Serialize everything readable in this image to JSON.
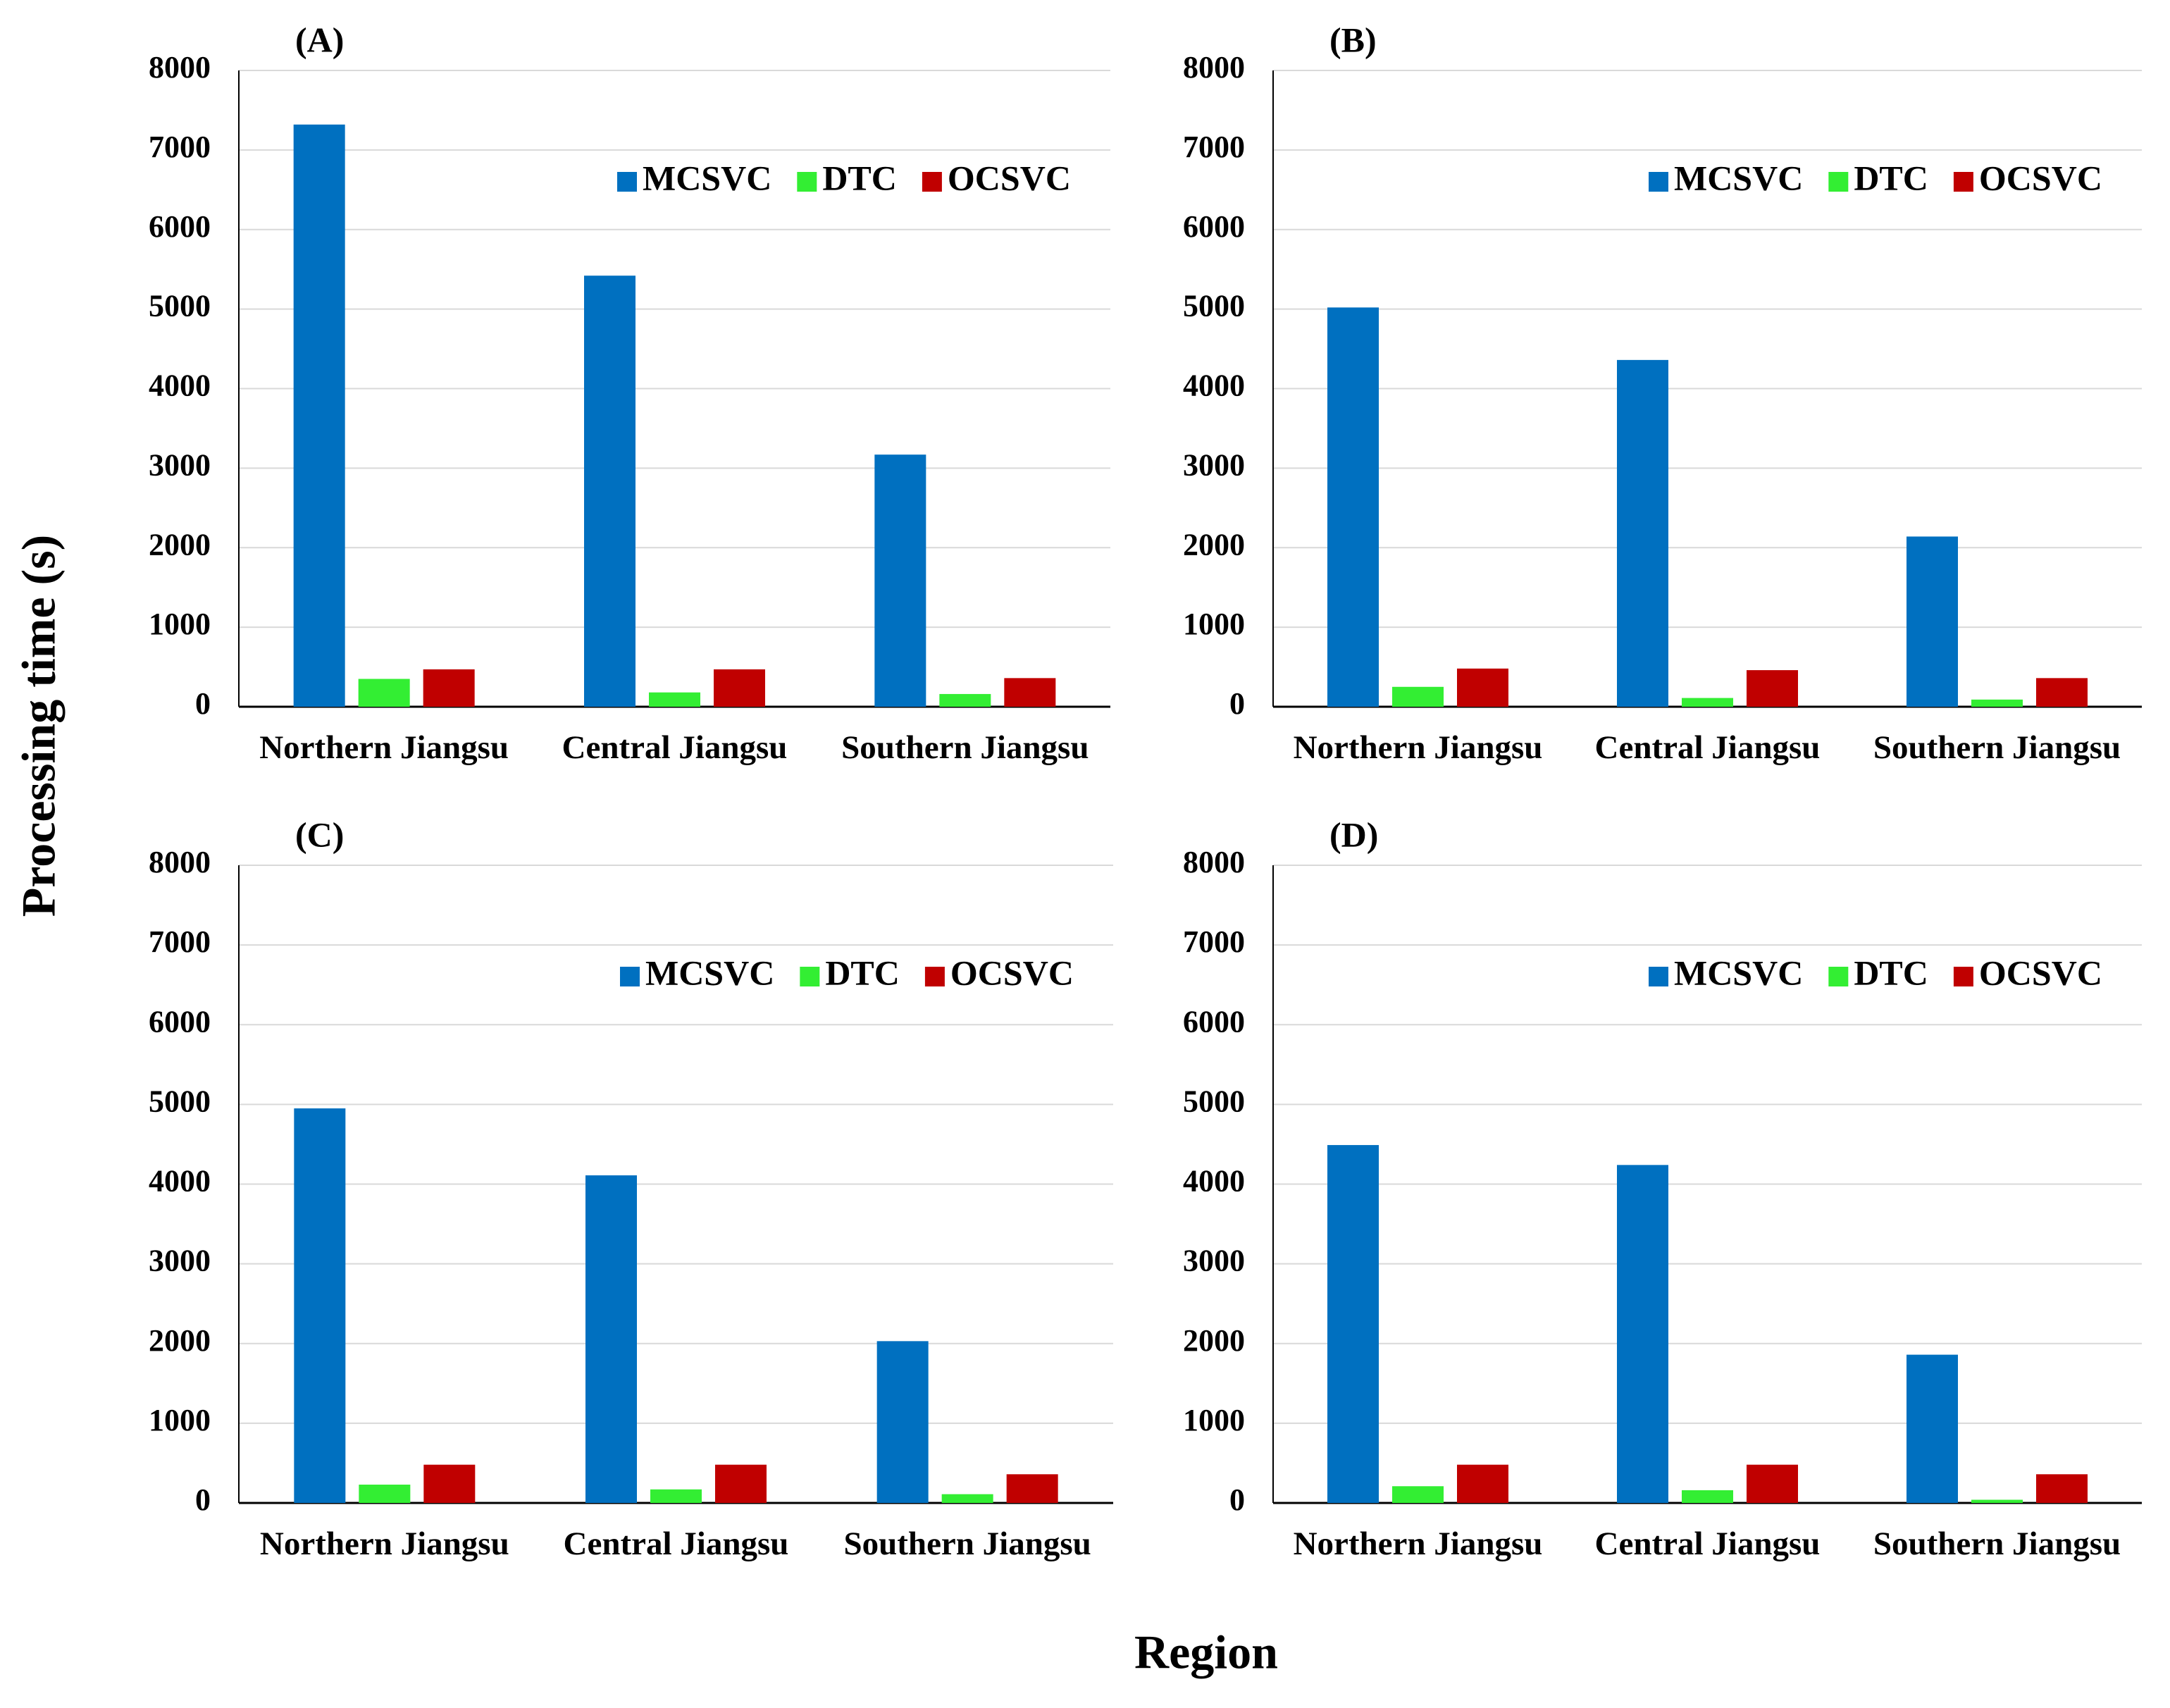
{
  "ylabel": "Processing time (s)",
  "xlabel": "Region",
  "chart_data": [
    {
      "type": "bar",
      "title": "(A)",
      "categories": [
        "Northern Jiangsu",
        "Central Jiangsu",
        "Southern Jiangsu"
      ],
      "series": [
        {
          "name": "MCSVC",
          "color": "#0070c0",
          "values": [
            7320,
            5420,
            3170
          ]
        },
        {
          "name": "DTC",
          "color": "#33ee33",
          "values": [
            350,
            180,
            160
          ]
        },
        {
          "name": "OCSVC",
          "color": "#c00000",
          "values": [
            470,
            470,
            360
          ]
        }
      ],
      "ylim": [
        0,
        8000
      ],
      "yticks": [
        0,
        1000,
        2000,
        3000,
        4000,
        5000,
        6000,
        7000,
        8000
      ],
      "grid": true
    },
    {
      "type": "bar",
      "title": "(B)",
      "categories": [
        "Northern Jiangsu",
        "Central Jiangsu",
        "Southern Jiangsu"
      ],
      "series": [
        {
          "name": "MCSVC",
          "color": "#0070c0",
          "values": [
            5020,
            4360,
            2140
          ]
        },
        {
          "name": "DTC",
          "color": "#33ee33",
          "values": [
            250,
            110,
            90
          ]
        },
        {
          "name": "OCSVC",
          "color": "#c00000",
          "values": [
            480,
            460,
            360
          ]
        }
      ],
      "ylim": [
        0,
        8000
      ],
      "yticks": [
        0,
        1000,
        2000,
        3000,
        4000,
        5000,
        6000,
        7000,
        8000
      ],
      "grid": true
    },
    {
      "type": "bar",
      "title": "(C)",
      "categories": [
        "Northern Jiangsu",
        "Central Jiangsu",
        "Southern Jiangsu"
      ],
      "series": [
        {
          "name": "MCSVC",
          "color": "#0070c0",
          "values": [
            4950,
            4110,
            2030
          ]
        },
        {
          "name": "DTC",
          "color": "#33ee33",
          "values": [
            230,
            170,
            110
          ]
        },
        {
          "name": "OCSVC",
          "color": "#c00000",
          "values": [
            480,
            480,
            360
          ]
        }
      ],
      "ylim": [
        0,
        8000
      ],
      "yticks": [
        0,
        1000,
        2000,
        3000,
        4000,
        5000,
        6000,
        7000,
        8000
      ],
      "grid": true
    },
    {
      "type": "bar",
      "title": "(D)",
      "categories": [
        "Northern Jiangsu",
        "Central Jiangsu",
        "Southern Jiangsu"
      ],
      "series": [
        {
          "name": "MCSVC",
          "color": "#0070c0",
          "values": [
            4490,
            4240,
            1860
          ]
        },
        {
          "name": "DTC",
          "color": "#33ee33",
          "values": [
            210,
            160,
            40
          ]
        },
        {
          "name": "OCSVC",
          "color": "#c00000",
          "values": [
            480,
            480,
            360
          ]
        }
      ],
      "ylim": [
        0,
        8000
      ],
      "yticks": [
        0,
        1000,
        2000,
        3000,
        4000,
        5000,
        6000,
        7000,
        8000
      ],
      "grid": true
    }
  ]
}
